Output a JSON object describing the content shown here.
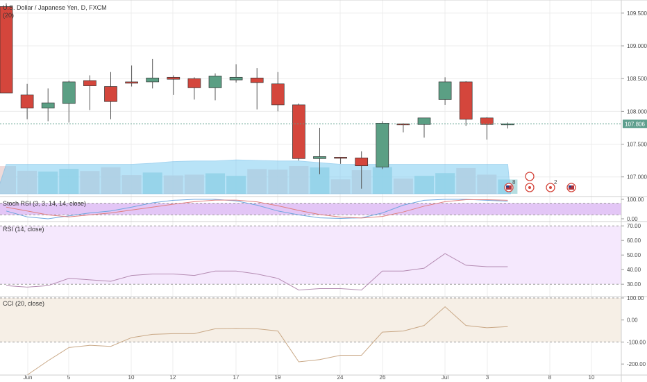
{
  "colors": {
    "up": "#5b9f84",
    "down": "#d4463c",
    "grid": "#ececec",
    "stoch_bg": "#e3c6f6",
    "rsi_bg": "#f5e8fd",
    "cci_bg": "#f6efe6",
    "vol_up": "#a8d8dc",
    "vol_down": "#ecd3d2",
    "vol_ma": "#7fcdf2",
    "rsi_line": "#b48bb2",
    "cci_line": "#c9a886",
    "stoch_k": "#6fa7df",
    "stoch_d": "#e07f7f",
    "last_price": "#5e9f8e"
  },
  "header": {
    "symbol_title": "U.S. Dollar / Japanese Yen, D, FXCM",
    "volume_label": "(20)"
  },
  "panes": {
    "stoch_label": "Stoch RSI (3, 3, 14, 14, close)",
    "rsi_label": "RSI (14, close)",
    "cci_label": "CCI (20, close)"
  },
  "last_price_tag": "107.806",
  "events": [
    {
      "type": "flag-us",
      "badge": "8"
    },
    {
      "type": "dividend",
      "badge": ""
    },
    {
      "type": "dividend",
      "badge": "2"
    },
    {
      "type": "flag-us",
      "badge": ""
    }
  ],
  "chart_data": [
    {
      "type": "candlestick",
      "title": "U.S. Dollar / Japanese Yen, D, FXCM",
      "x_tick_labels": [
        "Jun",
        "5",
        "10",
        "12",
        "17",
        "19",
        "24",
        "26",
        "Jul",
        "3",
        "8",
        "10"
      ],
      "y_tick_labels": [
        "107.000",
        "107.500",
        "108.000",
        "108.500",
        "109.000",
        "109.500"
      ],
      "ylim": [
        106.7,
        109.7
      ],
      "candles": [
        {
          "o": 109.6,
          "h": 109.65,
          "l": 108.28,
          "c": 108.28
        },
        {
          "o": 108.25,
          "h": 108.42,
          "l": 107.88,
          "c": 108.05
        },
        {
          "o": 108.05,
          "h": 108.35,
          "l": 107.85,
          "c": 108.13
        },
        {
          "o": 108.12,
          "h": 108.47,
          "l": 107.83,
          "c": 108.45
        },
        {
          "o": 108.47,
          "h": 108.55,
          "l": 108.02,
          "c": 108.39
        },
        {
          "o": 108.38,
          "h": 108.6,
          "l": 107.88,
          "c": 108.15
        },
        {
          "o": 108.45,
          "h": 108.7,
          "l": 108.38,
          "c": 108.43
        },
        {
          "o": 108.45,
          "h": 108.8,
          "l": 108.35,
          "c": 108.51
        },
        {
          "o": 108.52,
          "h": 108.55,
          "l": 108.25,
          "c": 108.49
        },
        {
          "o": 108.5,
          "h": 108.52,
          "l": 108.18,
          "c": 108.36
        },
        {
          "o": 108.36,
          "h": 108.58,
          "l": 108.17,
          "c": 108.54
        },
        {
          "o": 108.48,
          "h": 108.72,
          "l": 108.44,
          "c": 108.52
        },
        {
          "o": 108.51,
          "h": 108.66,
          "l": 108.03,
          "c": 108.44
        },
        {
          "o": 108.42,
          "h": 108.6,
          "l": 108.0,
          "c": 108.1
        },
        {
          "o": 108.1,
          "h": 108.12,
          "l": 107.25,
          "c": 107.28
        },
        {
          "o": 107.28,
          "h": 107.75,
          "l": 107.04,
          "c": 107.31
        },
        {
          "o": 107.3,
          "h": 107.3,
          "l": 107.2,
          "c": 107.29
        },
        {
          "o": 107.29,
          "h": 107.39,
          "l": 106.82,
          "c": 107.17
        },
        {
          "o": 107.15,
          "h": 107.85,
          "l": 107.12,
          "c": 107.82
        },
        {
          "o": 107.81,
          "h": 107.82,
          "l": 107.68,
          "c": 107.8
        },
        {
          "o": 107.8,
          "h": 107.88,
          "l": 107.6,
          "c": 107.9
        },
        {
          "o": 108.18,
          "h": 108.52,
          "l": 108.1,
          "c": 108.45
        },
        {
          "o": 108.45,
          "h": 108.46,
          "l": 107.78,
          "c": 107.88
        },
        {
          "o": 107.9,
          "h": 107.91,
          "l": 107.57,
          "c": 107.8
        },
        {
          "o": 107.8,
          "h": 107.83,
          "l": 107.74,
          "c": 107.81
        }
      ],
      "volume_ma_top_fraction": [
        0.53,
        0.53,
        0.53,
        0.53,
        0.53,
        0.53,
        0.53,
        0.55,
        0.58,
        0.59,
        0.59,
        0.61,
        0.6,
        0.59,
        0.59,
        0.56,
        0.53,
        0.53,
        0.53,
        0.53,
        0.53,
        0.53,
        0.53,
        0.53,
        0.53
      ]
    },
    {
      "type": "line",
      "title": "Stoch RSI (3, 3, 14, 14, close)",
      "y_tick_labels": [
        "100.00",
        "0.00"
      ],
      "ylim": [
        0,
        100
      ],
      "series": [
        {
          "values": [
            40,
            10,
            0,
            15,
            30,
            40,
            60,
            82,
            95,
            100,
            100,
            92,
            70,
            40,
            20,
            5,
            2,
            5,
            30,
            70,
            95,
            100,
            100,
            95,
            90
          ]
        },
        {
          "values": [
            60,
            40,
            20,
            10,
            20,
            30,
            45,
            60,
            75,
            88,
            96,
            96,
            87,
            67,
            43,
            22,
            9,
            4,
            12,
            35,
            65,
            88,
            98,
            98,
            95
          ]
        }
      ]
    },
    {
      "type": "line",
      "title": "RSI (14, close)",
      "y_tick_labels": [
        "70.00",
        "60.00",
        "50.00",
        "40.00",
        "30.00"
      ],
      "ylim": [
        22,
        72
      ],
      "series": [
        {
          "values": [
            29,
            28,
            29,
            34,
            33,
            32,
            36,
            37,
            37,
            36,
            39,
            39,
            37,
            34,
            26,
            27,
            27,
            26,
            39,
            39,
            41,
            51,
            43,
            42,
            42
          ]
        }
      ]
    },
    {
      "type": "line",
      "title": "CCI (20, close)",
      "y_tick_labels": [
        "100.00",
        "0.00",
        "-100.00",
        "-200.00"
      ],
      "ylim": [
        -250,
        100
      ],
      "series": [
        {
          "values": [
            -250,
            -250,
            -185,
            -125,
            -115,
            -120,
            -80,
            -65,
            -62,
            -62,
            -40,
            -38,
            -40,
            -50,
            -190,
            -180,
            -160,
            -160,
            -55,
            -50,
            -25,
            60,
            -25,
            -35,
            -30
          ]
        }
      ]
    }
  ]
}
